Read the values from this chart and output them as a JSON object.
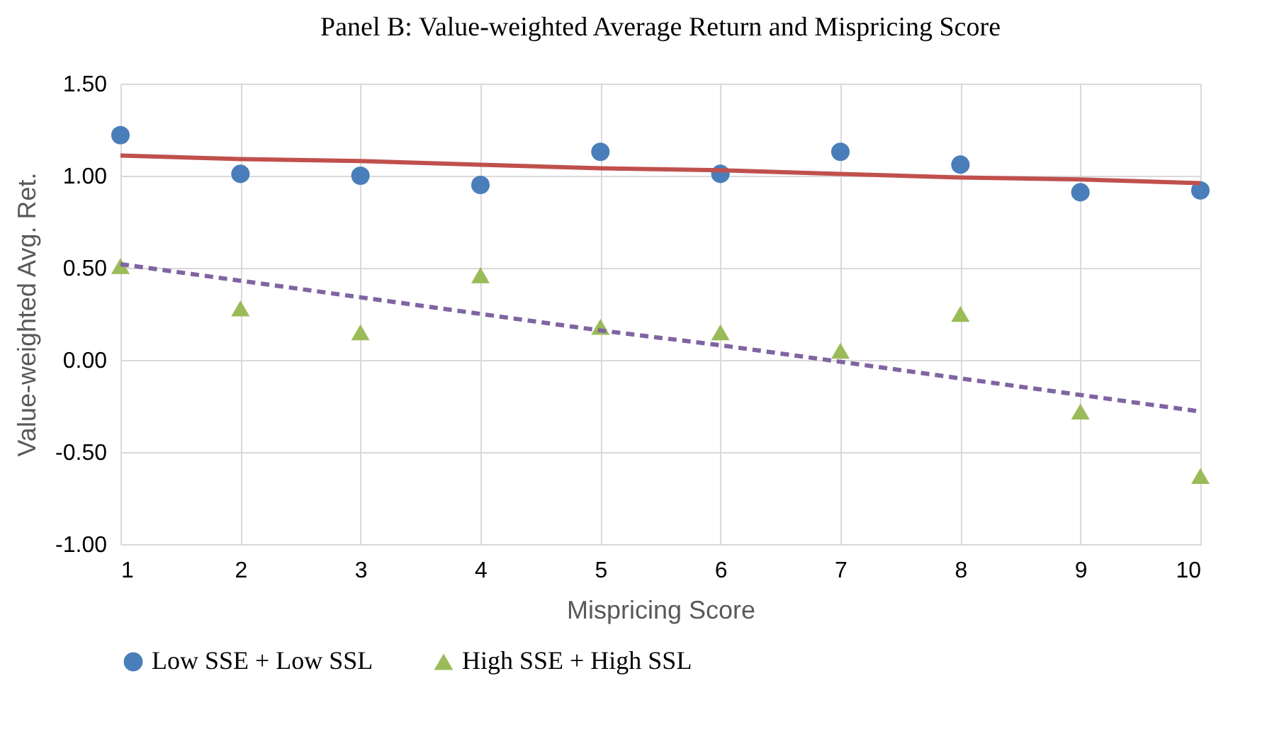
{
  "chart_data": {
    "type": "scatter",
    "title": "Panel B: Value-weighted Average Return and Mispricing Score",
    "xlabel": "Mispricing Score",
    "ylabel": "Value-weighted Avg. Ret.",
    "x": [
      1,
      2,
      3,
      4,
      5,
      6,
      7,
      8,
      9,
      10
    ],
    "series": [
      {
        "name": "Low SSE + Low SSL",
        "color": "#4a7ebb",
        "marker": "circle",
        "values": [
          1.22,
          1.01,
          1.0,
          0.95,
          1.13,
          1.01,
          1.13,
          1.06,
          0.91,
          0.92
        ]
      },
      {
        "name": "High SSE + High SSL",
        "color": "#9bbb59",
        "marker": "triangle",
        "values": [
          0.51,
          0.28,
          0.15,
          0.46,
          0.18,
          0.15,
          0.05,
          0.25,
          -0.28,
          -0.63
        ]
      },
      {
        "type": "line",
        "color": "#c0504d",
        "line_style": "solid",
        "values": [
          1.11,
          1.09,
          1.08,
          1.06,
          1.04,
          1.03,
          1.01,
          0.99,
          0.98,
          0.96
        ]
      },
      {
        "type": "line",
        "color": "#8064a2",
        "line_style": "dashed",
        "values": [
          0.52,
          0.43,
          0.34,
          0.25,
          0.16,
          0.08,
          -0.01,
          -0.1,
          -0.19,
          -0.28
        ]
      }
    ],
    "xlim": [
      1,
      10
    ],
    "xticks": [
      1,
      2,
      3,
      4,
      5,
      6,
      7,
      8,
      9,
      10
    ],
    "ylim": [
      -1,
      1.5
    ],
    "yticks": [
      {
        "value": -1,
        "label": "-1.00"
      },
      {
        "value": -0.5,
        "label": "-0.50"
      },
      {
        "value": 0,
        "label": "0.00"
      },
      {
        "value": 0.5,
        "label": "0.50"
      },
      {
        "value": 1,
        "label": "1.00"
      },
      {
        "value": 1.5,
        "label": "1.50"
      }
    ],
    "grid": true,
    "legend": "bottom"
  }
}
